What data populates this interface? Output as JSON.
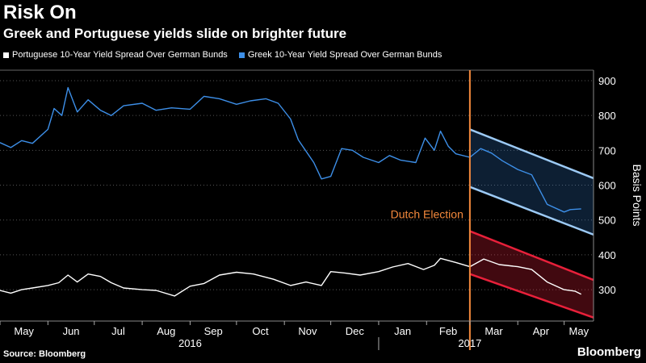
{
  "header": {
    "title": "Risk On",
    "subtitle": "Greek and Portuguese yields slide on brighter future"
  },
  "footer": {
    "source": "Source: Bloomberg",
    "logo": "Bloomberg"
  },
  "colors": {
    "portuguese": "#ffffff",
    "greek": "#3d8fe8",
    "election": "#f4893c",
    "red_channel": "#e8203a",
    "blue_channel": "#9ccaf5"
  },
  "chart_data": {
    "type": "line",
    "title": "Risk On",
    "subtitle": "Greek and Portuguese yields slide on brighter future",
    "ylabel": "Basis Points",
    "ylim": [
      210,
      930
    ],
    "yticks": [
      300,
      400,
      500,
      600,
      700,
      800,
      900
    ],
    "y_axis_position": "right",
    "grid": "horizontal-dotted",
    "legend_position": "top-left",
    "x_range": [
      "2016-05-01",
      "2017-05-20"
    ],
    "month_ticks": [
      {
        "label": "May",
        "date": "2016-05-01"
      },
      {
        "label": "Jun",
        "date": "2016-06-01"
      },
      {
        "label": "Jul",
        "date": "2016-07-01"
      },
      {
        "label": "Aug",
        "date": "2016-08-01"
      },
      {
        "label": "Sep",
        "date": "2016-09-01"
      },
      {
        "label": "Oct",
        "date": "2016-10-01"
      },
      {
        "label": "Nov",
        "date": "2016-11-01"
      },
      {
        "label": "Dec",
        "date": "2016-12-01"
      },
      {
        "label": "Jan",
        "date": "2017-01-01"
      },
      {
        "label": "Feb",
        "date": "2017-02-01"
      },
      {
        "label": "Mar",
        "date": "2017-03-01"
      },
      {
        "label": "Apr",
        "date": "2017-04-01"
      },
      {
        "label": "May",
        "date": "2017-05-01"
      }
    ],
    "year_labels": [
      {
        "label": "2016",
        "date": "2016-09-01"
      },
      {
        "label": "2017",
        "date": "2017-03-01"
      }
    ],
    "series": [
      {
        "name": "Portuguese 10-Year Yield Spread Over German Bunds",
        "values": [
          [
            "2016-05-01",
            298
          ],
          [
            "2016-05-08",
            290
          ],
          [
            "2016-05-15",
            300
          ],
          [
            "2016-05-22",
            305
          ],
          [
            "2016-06-01",
            312
          ],
          [
            "2016-06-08",
            320
          ],
          [
            "2016-06-14",
            342
          ],
          [
            "2016-06-20",
            322
          ],
          [
            "2016-06-27",
            345
          ],
          [
            "2016-07-05",
            338
          ],
          [
            "2016-07-12",
            320
          ],
          [
            "2016-07-20",
            305
          ],
          [
            "2016-08-01",
            300
          ],
          [
            "2016-08-10",
            298
          ],
          [
            "2016-08-22",
            282
          ],
          [
            "2016-09-01",
            310
          ],
          [
            "2016-09-10",
            318
          ],
          [
            "2016-09-20",
            342
          ],
          [
            "2016-10-01",
            350
          ],
          [
            "2016-10-12",
            345
          ],
          [
            "2016-10-25",
            330
          ],
          [
            "2016-11-05",
            312
          ],
          [
            "2016-11-15",
            322
          ],
          [
            "2016-11-25",
            312
          ],
          [
            "2016-12-01",
            352
          ],
          [
            "2016-12-10",
            348
          ],
          [
            "2016-12-20",
            342
          ],
          [
            "2017-01-01",
            352
          ],
          [
            "2017-01-10",
            365
          ],
          [
            "2017-01-20",
            375
          ],
          [
            "2017-01-30",
            358
          ],
          [
            "2017-02-06",
            370
          ],
          [
            "2017-02-10",
            390
          ],
          [
            "2017-02-20",
            378
          ],
          [
            "2017-03-01",
            366
          ],
          [
            "2017-03-10",
            388
          ],
          [
            "2017-03-20",
            372
          ],
          [
            "2017-04-01",
            366
          ],
          [
            "2017-04-10",
            358
          ],
          [
            "2017-04-20",
            322
          ],
          [
            "2017-05-01",
            300
          ],
          [
            "2017-05-08",
            296
          ],
          [
            "2017-05-12",
            287
          ]
        ]
      },
      {
        "name": "Greek 10-Year Yield Spread Over German Bunds",
        "values": [
          [
            "2016-05-01",
            722
          ],
          [
            "2016-05-08",
            708
          ],
          [
            "2016-05-15",
            728
          ],
          [
            "2016-05-22",
            720
          ],
          [
            "2016-06-01",
            760
          ],
          [
            "2016-06-05",
            820
          ],
          [
            "2016-06-10",
            800
          ],
          [
            "2016-06-14",
            880
          ],
          [
            "2016-06-20",
            810
          ],
          [
            "2016-06-27",
            845
          ],
          [
            "2016-07-05",
            815
          ],
          [
            "2016-07-12",
            800
          ],
          [
            "2016-07-20",
            828
          ],
          [
            "2016-08-01",
            835
          ],
          [
            "2016-08-10",
            815
          ],
          [
            "2016-08-20",
            822
          ],
          [
            "2016-09-01",
            818
          ],
          [
            "2016-09-10",
            855
          ],
          [
            "2016-09-20",
            848
          ],
          [
            "2016-10-01",
            832
          ],
          [
            "2016-10-10",
            842
          ],
          [
            "2016-10-20",
            848
          ],
          [
            "2016-10-28",
            835
          ],
          [
            "2016-11-05",
            790
          ],
          [
            "2016-11-10",
            730
          ],
          [
            "2016-11-20",
            665
          ],
          [
            "2016-11-25",
            618
          ],
          [
            "2016-12-01",
            625
          ],
          [
            "2016-12-08",
            705
          ],
          [
            "2016-12-15",
            700
          ],
          [
            "2016-12-22",
            680
          ],
          [
            "2017-01-01",
            665
          ],
          [
            "2017-01-08",
            685
          ],
          [
            "2017-01-15",
            672
          ],
          [
            "2017-01-25",
            665
          ],
          [
            "2017-01-31",
            735
          ],
          [
            "2017-02-06",
            700
          ],
          [
            "2017-02-10",
            755
          ],
          [
            "2017-02-15",
            712
          ],
          [
            "2017-02-20",
            690
          ],
          [
            "2017-03-01",
            680
          ],
          [
            "2017-03-08",
            705
          ],
          [
            "2017-03-15",
            692
          ],
          [
            "2017-03-22",
            670
          ],
          [
            "2017-04-01",
            645
          ],
          [
            "2017-04-10",
            630
          ],
          [
            "2017-04-20",
            545
          ],
          [
            "2017-05-01",
            523
          ],
          [
            "2017-05-05",
            530
          ],
          [
            "2017-05-12",
            532
          ]
        ]
      }
    ],
    "annotations": [
      {
        "type": "vertical-line",
        "label": "Dutch Election",
        "date": "2017-03-01",
        "label_y": 500
      },
      {
        "type": "channel",
        "series": "Greek",
        "start_date": "2017-03-01",
        "end_date": "2017-05-20",
        "upper": [
          760,
          620
        ],
        "lower": [
          595,
          458
        ]
      },
      {
        "type": "channel",
        "series": "Portuguese",
        "start_date": "2017-03-01",
        "end_date": "2017-05-20",
        "upper": [
          468,
          328
        ],
        "lower": [
          345,
          220
        ]
      }
    ]
  }
}
